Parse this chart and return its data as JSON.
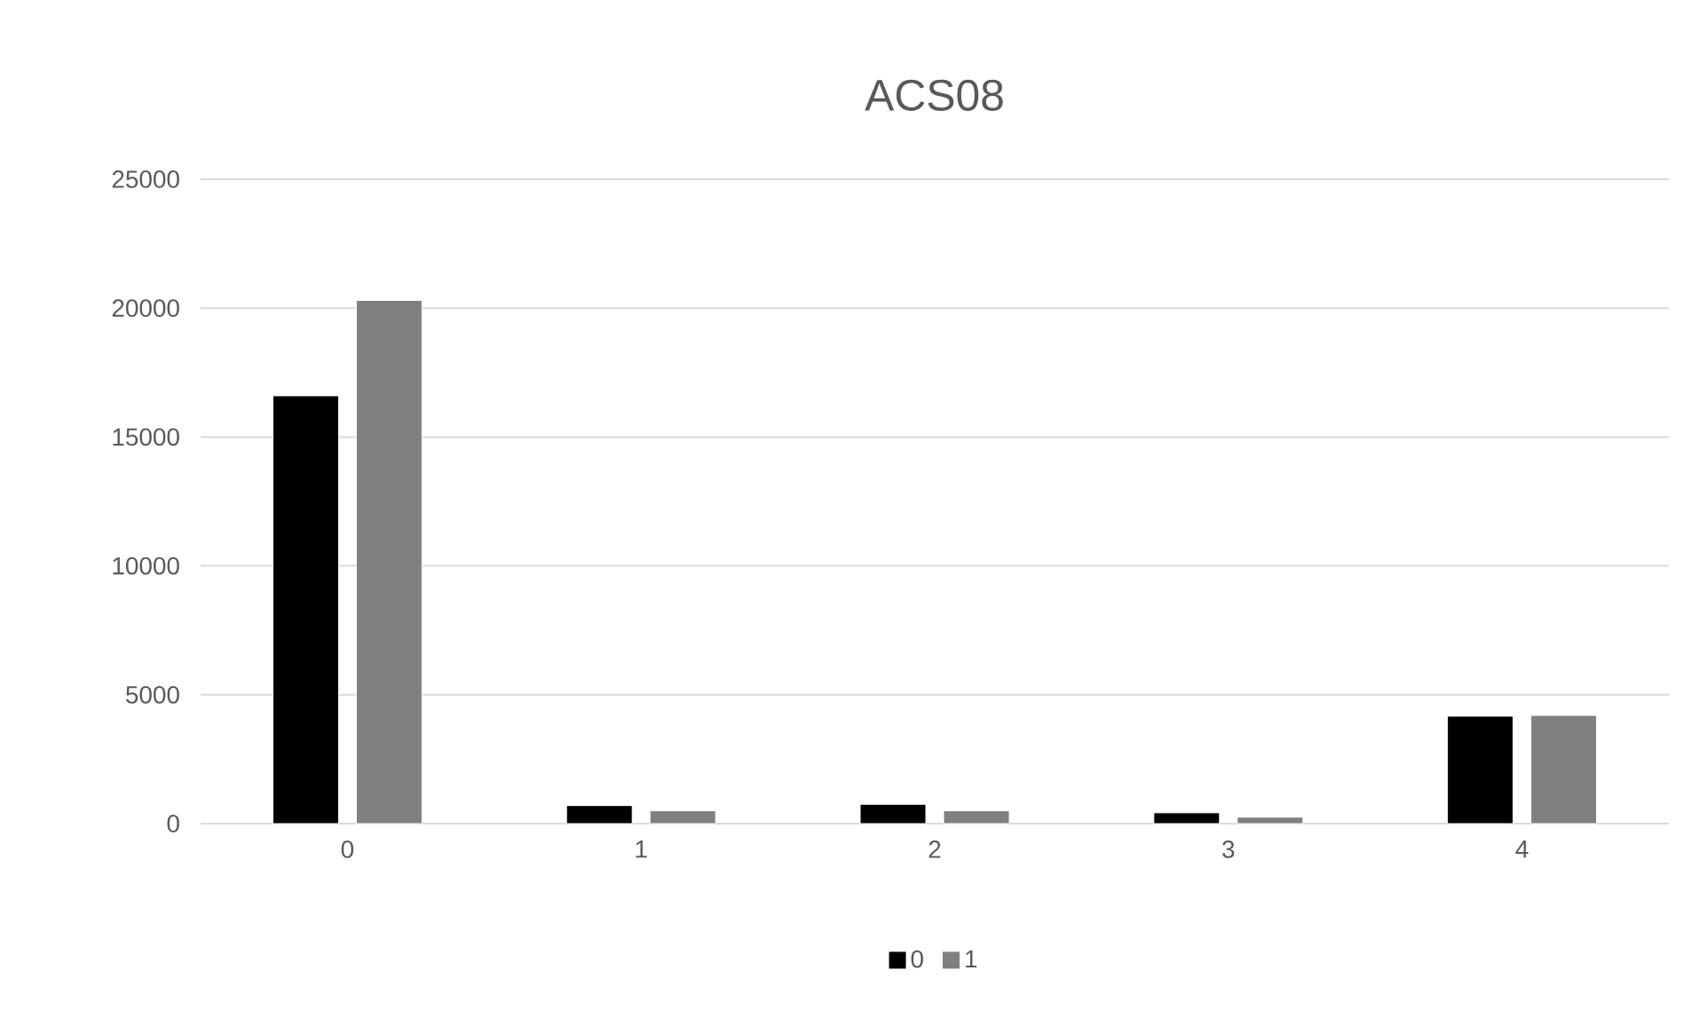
{
  "chart_data": {
    "type": "bar",
    "title": "ACS08",
    "categories": [
      "0",
      "1",
      "2",
      "3",
      "4"
    ],
    "series": [
      {
        "name": "0",
        "color": "#000000",
        "values": [
          16600,
          700,
          750,
          420,
          4170
        ]
      },
      {
        "name": "1",
        "color": "#808080",
        "values": [
          20300,
          500,
          500,
          250,
          4200
        ]
      }
    ],
    "ylim": [
      0,
      25000
    ],
    "yticks": [
      0,
      5000,
      10000,
      15000,
      20000,
      25000
    ],
    "grid": "y",
    "legend": "bottom"
  }
}
